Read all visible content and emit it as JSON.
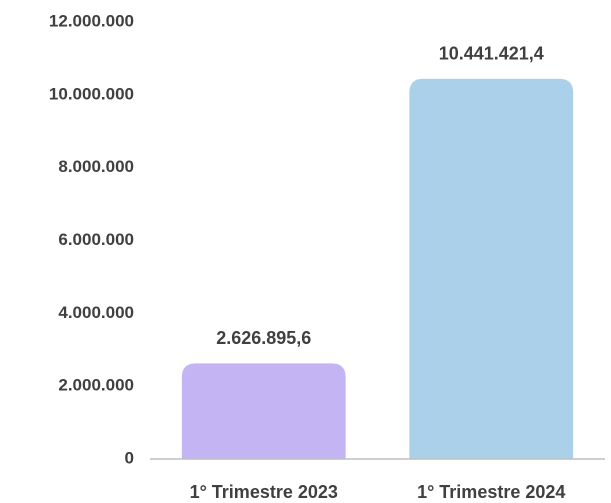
{
  "chart_data": {
    "type": "bar",
    "categories": [
      "1° Trimestre 2023",
      "1° Trimestre 2024"
    ],
    "values": [
      2626895.6,
      10441421.4
    ],
    "value_labels": [
      "2.626.895,6",
      "10.441.421,4"
    ],
    "colors": [
      "#c5b4f4",
      "#aad1e9"
    ],
    "ylim": [
      0,
      12000000
    ],
    "yticks": [
      0,
      {
        "value": 2000000,
        "label": "2.000.000"
      },
      {
        "value": 4000000,
        "label": "4.000.000"
      },
      {
        "value": 6000000,
        "label": "6.000.000"
      },
      {
        "value": 8000000,
        "label": "8.000.000"
      },
      {
        "value": 10000000,
        "label": "10.000.000"
      },
      {
        "value": 12000000,
        "label": "12.000.000"
      }
    ],
    "grid": false
  }
}
